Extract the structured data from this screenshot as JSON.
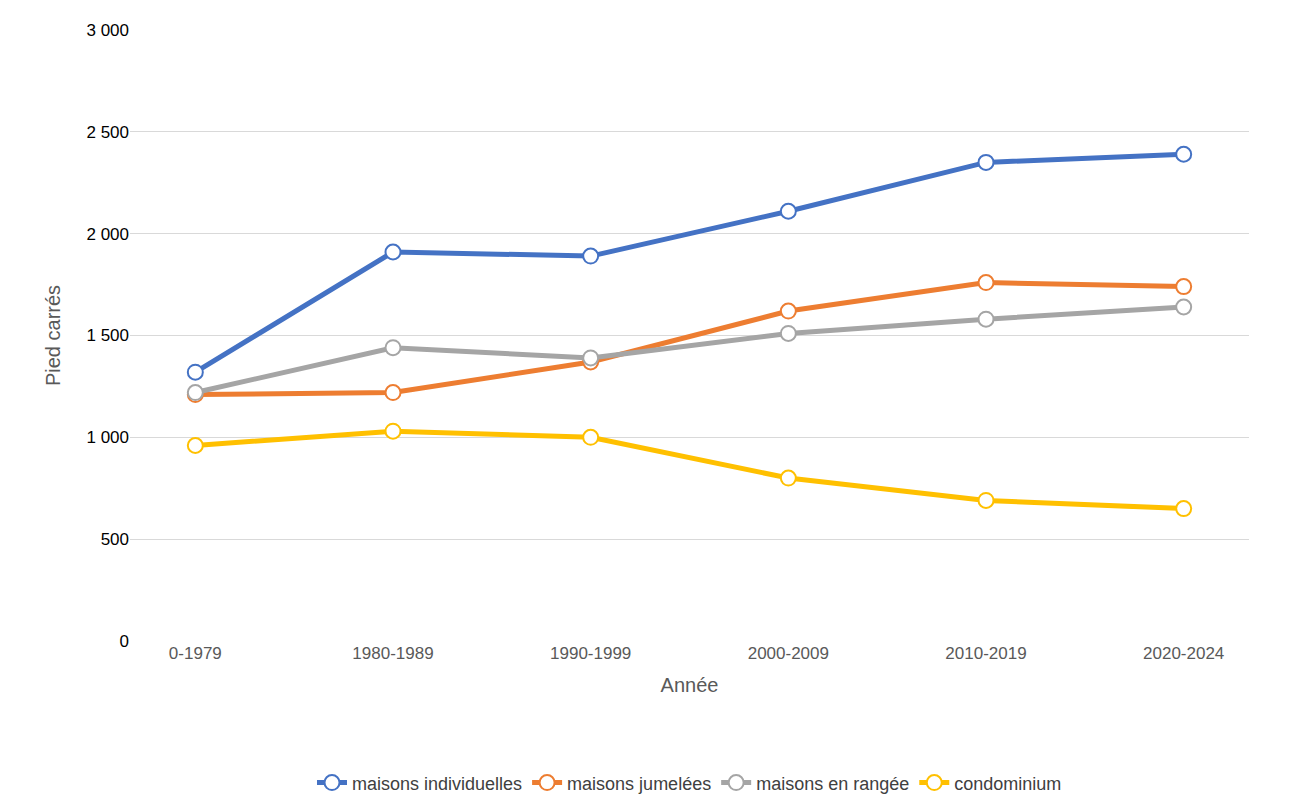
{
  "chart_data": {
    "type": "line",
    "x_label": "Année",
    "y_label": "Pied carrés",
    "categories": [
      "0-1979",
      "1980-1989",
      "1990-1999",
      "2000-2009",
      "2010-2019",
      "2020-2024"
    ],
    "series": [
      {
        "name": "maisons individuelles",
        "color": "#4472C4",
        "values": [
          1320,
          1910,
          1890,
          2110,
          2350,
          2390
        ]
      },
      {
        "name": "maisons jumelées",
        "color": "#ED7D31",
        "values": [
          1210,
          1220,
          1370,
          1620,
          1760,
          1740
        ]
      },
      {
        "name": "maisons en rangée",
        "color": "#A5A5A5",
        "values": [
          1220,
          1440,
          1390,
          1510,
          1580,
          1640
        ]
      },
      {
        "name": "condominium",
        "color": "#FFC000",
        "values": [
          960,
          1030,
          1000,
          800,
          690,
          650
        ]
      }
    ],
    "ylim": [
      0,
      3000
    ],
    "yticks": [
      0,
      500,
      {
        "value": 1000,
        "label": "1 000"
      },
      {
        "value": 1500,
        "label": "1 500"
      },
      {
        "value": 2000,
        "label": "2 000"
      },
      {
        "value": 2500,
        "label": "2 500"
      },
      {
        "value": 3000,
        "label": "3 000"
      }
    ],
    "grid": true,
    "legend": "bottom",
    "marker": "circle"
  }
}
